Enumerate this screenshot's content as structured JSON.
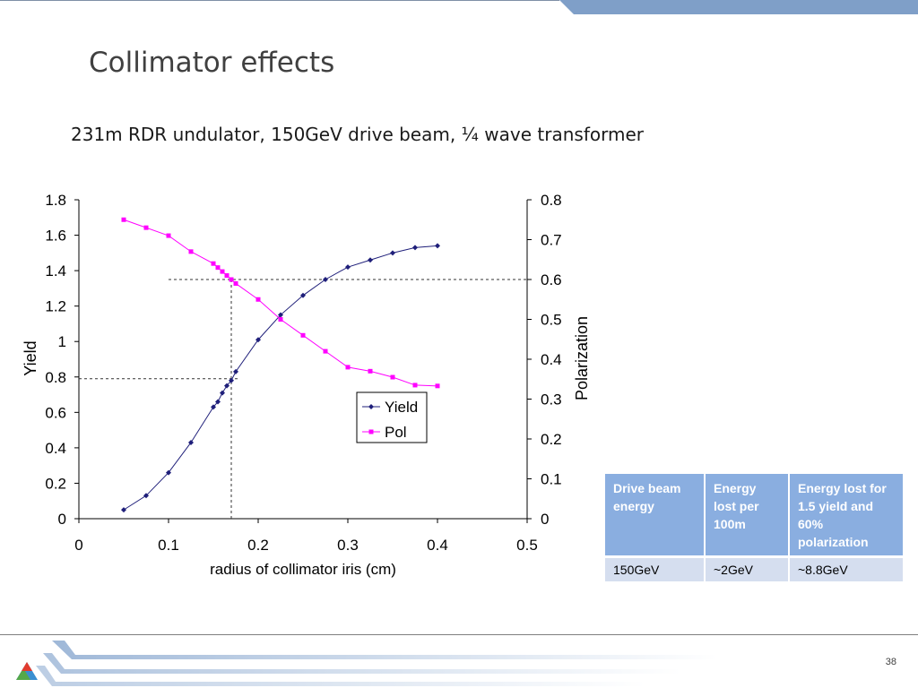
{
  "slide": {
    "title": "Collimator effects",
    "subtitle": "231m RDR undulator, 150GeV drive beam, ¼ wave transformer",
    "page_number": "38"
  },
  "table": {
    "headers": [
      "Drive beam energy",
      "Energy lost per 100m",
      "Energy lost for 1.5 yield and 60% polarization"
    ],
    "rows": [
      [
        "150GeV",
        "~2GeV",
        "~8.8GeV"
      ]
    ]
  },
  "chart_data": {
    "type": "line",
    "xlabel": "radius of collimator iris (cm)",
    "ylabel": "Yield",
    "y2label": "Polarization",
    "xlim": [
      0,
      0.5
    ],
    "ylim": [
      0,
      1.8
    ],
    "y2lim": [
      0,
      0.8
    ],
    "xticks": [
      "0",
      "0.1",
      "0.2",
      "0.3",
      "0.4",
      "0.5"
    ],
    "yticks": [
      "0",
      "0.2",
      "0.4",
      "0.6",
      "0.8",
      "1",
      "1.2",
      "1.4",
      "1.6",
      "1.8"
    ],
    "y2ticks": [
      "0",
      "0.1",
      "0.2",
      "0.3",
      "0.4",
      "0.5",
      "0.6",
      "0.7",
      "0.8"
    ],
    "legend_position": "center-right",
    "series": [
      {
        "name": "Yield",
        "axis": "left",
        "color": "#1f1f7a",
        "marker": "diamond",
        "x": [
          0.05,
          0.075,
          0.1,
          0.125,
          0.15,
          0.155,
          0.16,
          0.165,
          0.17,
          0.175,
          0.2,
          0.225,
          0.25,
          0.275,
          0.3,
          0.325,
          0.35,
          0.375,
          0.4
        ],
        "y": [
          0.05,
          0.13,
          0.26,
          0.43,
          0.63,
          0.66,
          0.71,
          0.75,
          0.78,
          0.83,
          1.01,
          1.15,
          1.26,
          1.35,
          1.42,
          1.46,
          1.5,
          1.53,
          1.54
        ]
      },
      {
        "name": "Pol",
        "axis": "right",
        "color": "#ff00ff",
        "marker": "square",
        "x": [
          0.05,
          0.075,
          0.1,
          0.125,
          0.15,
          0.155,
          0.16,
          0.165,
          0.17,
          0.175,
          0.2,
          0.225,
          0.25,
          0.275,
          0.3,
          0.325,
          0.35,
          0.375,
          0.4
        ],
        "y": [
          0.75,
          0.73,
          0.71,
          0.67,
          0.64,
          0.63,
          0.62,
          0.61,
          0.6,
          0.59,
          0.55,
          0.5,
          0.46,
          0.42,
          0.38,
          0.37,
          0.355,
          0.335,
          0.333
        ]
      }
    ],
    "reference_lines": [
      {
        "type": "horizontal",
        "axis": "right",
        "value": 0.6,
        "x_from": 0.1,
        "x_to": 0.5
      },
      {
        "type": "horizontal",
        "axis": "left",
        "value": 0.79,
        "x_from": 0,
        "x_to": 0.18
      },
      {
        "type": "vertical",
        "value": 0.17
      }
    ]
  }
}
